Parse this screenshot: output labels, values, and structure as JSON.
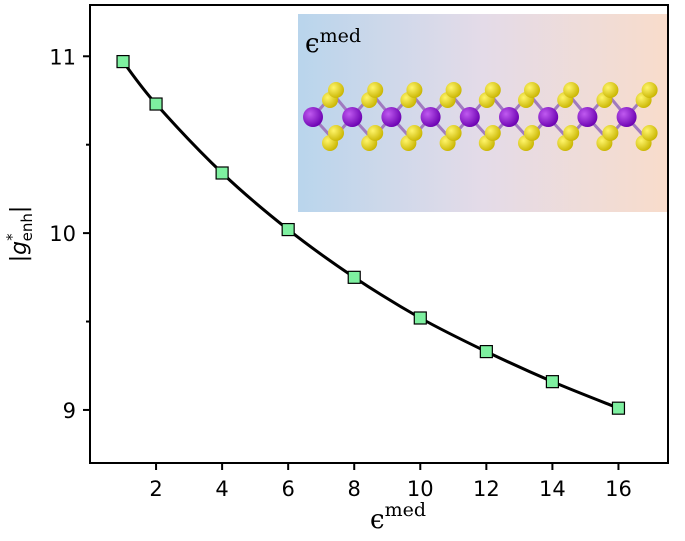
{
  "chart_data": {
    "type": "line",
    "x_label": {
      "base": "ϵ",
      "sup": "med"
    },
    "y_label": {
      "open": "|",
      "base": "g",
      "sup": "*",
      "sub": "enh",
      "close": "|"
    },
    "inset_label": {
      "base": "ϵ",
      "sup": "med"
    },
    "series": [
      {
        "color": "#000000",
        "marker_color": "#7ef0a0",
        "x": [
          1,
          2,
          4,
          6,
          8,
          10,
          12,
          14,
          16
        ],
        "values": [
          10.97,
          10.73,
          10.34,
          10.02,
          9.75,
          9.52,
          9.33,
          9.16,
          9.01
        ]
      }
    ],
    "xlim": [
      0,
      17.5
    ],
    "xticks": [
      2,
      4,
      6,
      8,
      10,
      12,
      14,
      16
    ],
    "ylim": [
      8.7,
      11.29
    ],
    "yticks": [
      9,
      10,
      11
    ],
    "yminor_ticks": [
      9.5,
      10.5
    ]
  }
}
